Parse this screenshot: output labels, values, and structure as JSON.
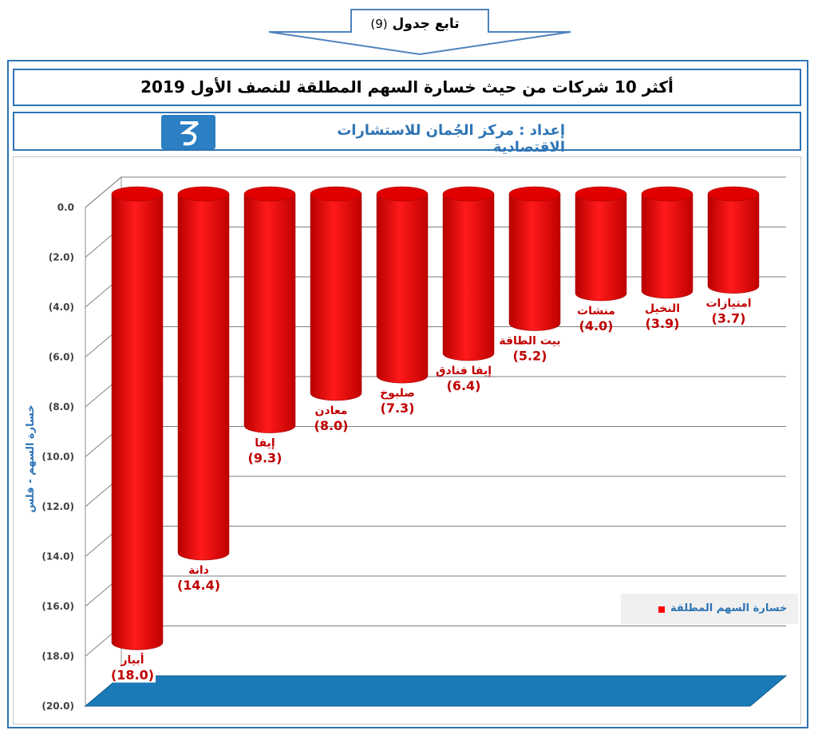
{
  "header": {
    "continued_label": "تابع جدول",
    "table_number": "(9)",
    "title": "أكثر 10 شركات من حيث خسارة السهم المطلقة للنصف الأول 2019",
    "prepared_by": "إعداد : مركز الجُمان للاستشارات الاقتصادية"
  },
  "chart_data": {
    "type": "bar",
    "title": "",
    "ylabel": "خسارة السهم - فلس",
    "xlabel": "",
    "ylim": [
      -20,
      0
    ],
    "yticks": [
      "0.0",
      "(2.0)",
      "(4.0)",
      "(6.0)",
      "(8.0)",
      "(10.0)",
      "(12.0)",
      "(14.0)",
      "(16.0)",
      "(18.0)",
      "(20.0)"
    ],
    "grid": true,
    "legend_position": "right",
    "series": [
      {
        "name": "خسارة السهم المطلقة",
        "color": "#ff0000",
        "categories": [
          "أبيار",
          "دانة",
          "إيفا",
          "معادن",
          "صلبوخ",
          "إيفا فنادق",
          "بيت الطاقة",
          "منشات",
          "النخيل",
          "امتيازات"
        ],
        "values": [
          -18.0,
          -14.4,
          -9.3,
          -8.0,
          -7.3,
          -6.4,
          -5.2,
          -4.0,
          -3.9,
          -3.7
        ],
        "labels": [
          "(18.0)",
          "(14.4)",
          "(9.3)",
          "(8.0)",
          "(7.3)",
          "(6.4)",
          "(5.2)",
          "(4.0)",
          "(3.9)",
          "(3.7)"
        ]
      }
    ]
  },
  "legend": {
    "label": "خسارة السهم المطلقة"
  }
}
